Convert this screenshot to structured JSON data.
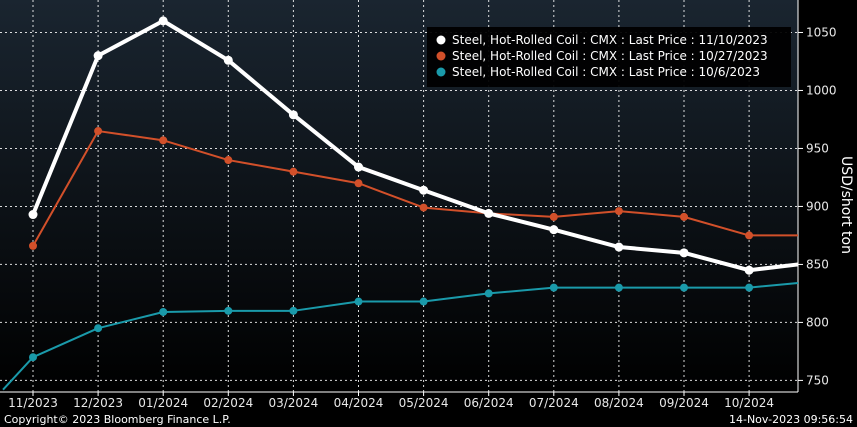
{
  "chart_data": {
    "type": "line",
    "title": "",
    "xlabel": "",
    "ylabel": "USD/short ton",
    "categories": [
      "11/2023",
      "12/2023",
      "01/2024",
      "02/2024",
      "03/2024",
      "04/2024",
      "05/2024",
      "06/2024",
      "07/2024",
      "08/2024",
      "09/2024",
      "10/2024"
    ],
    "ylim": [
      740,
      1078
    ],
    "yticks": [
      750,
      800,
      850,
      900,
      950,
      1000,
      1050
    ],
    "grid": true,
    "legend_position": "top-right",
    "series": [
      {
        "name": "Steel, Hot-Rolled Coil : CMX : Last Price : 11/10/2023",
        "color": "#ffffff",
        "values": [
          893,
          1030,
          1060,
          1026,
          979,
          934,
          914,
          894,
          880,
          865,
          860,
          845
        ],
        "tail_value": 850
      },
      {
        "name": "Steel, Hot-Rolled Coil : CMX : Last Price : 10/27/2023",
        "color": "#d2502a",
        "values": [
          866,
          965,
          957,
          940,
          930,
          920,
          899,
          894,
          891,
          896,
          891,
          875
        ],
        "tail_value": 875
      },
      {
        "name": "Steel, Hot-Rolled Coil : CMX : Last Price : 10/6/2023",
        "color": "#1a9aaa",
        "values": [
          770,
          795,
          809,
          810,
          810,
          818,
          818,
          825,
          830,
          830,
          830,
          830
        ],
        "head_value": 742,
        "tail_value": 834
      }
    ]
  },
  "footer": {
    "copyright": "Copyright© 2023 Bloomberg Finance L.P.",
    "timestamp": "14-Nov-2023 09:56:54"
  },
  "colors": {
    "background_top": "#1a2530",
    "background_bottom": "#000000",
    "grid": "#ffffff"
  }
}
